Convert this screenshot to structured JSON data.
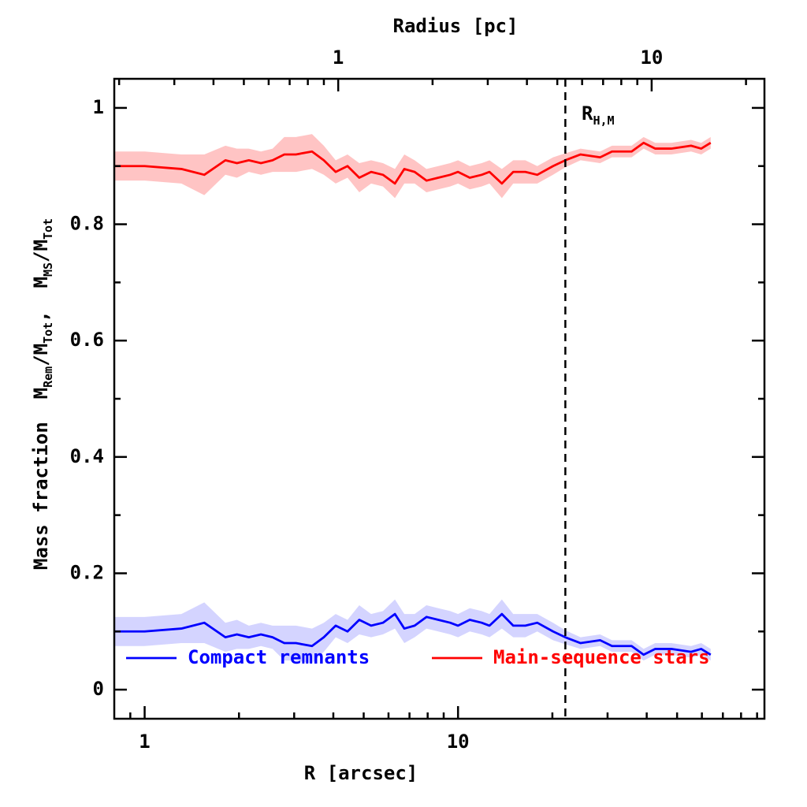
{
  "chart_data": {
    "type": "line",
    "xlabel": "R [arcsec]",
    "x2label": "Radius [pc]",
    "ylabel_parts": [
      {
        "text": "Mass fraction  M"
      },
      {
        "text": "Rem",
        "sub": true
      },
      {
        "text": "/M"
      },
      {
        "text": "Tot",
        "sub": true
      },
      {
        "text": ",  M"
      },
      {
        "text": "MS",
        "sub": true
      },
      {
        "text": "/M"
      },
      {
        "text": "Tot",
        "sub": true
      }
    ],
    "xscale": "log",
    "xlim": [
      0.8,
      95
    ],
    "xticks": [
      1,
      10
    ],
    "xminorticks": [
      0.9,
      2,
      3,
      4,
      5,
      6,
      7,
      8,
      9,
      20,
      30,
      40,
      50,
      60,
      70,
      80,
      90
    ],
    "x2lim": [
      0.193,
      22.9
    ],
    "x2ticks": [
      1,
      10
    ],
    "x2minorticks": [
      0.2,
      0.3,
      0.4,
      0.5,
      0.6,
      0.7,
      0.8,
      0.9,
      2,
      3,
      4,
      5,
      6,
      7,
      8,
      9,
      20
    ],
    "ylim": [
      -0.05,
      1.05
    ],
    "yticks": [
      0,
      0.2,
      0.4,
      0.6,
      0.8,
      1
    ],
    "yminorticks": [
      0.1,
      0.3,
      0.5,
      0.7,
      0.9
    ],
    "vline": 22.0,
    "annotation_parts": [
      {
        "text": "R"
      },
      {
        "text": "H,M",
        "sub": true
      }
    ],
    "legend": "lower",
    "x": [
      0.8,
      1.0,
      1.31,
      1.55,
      1.81,
      1.97,
      2.15,
      2.35,
      2.56,
      2.79,
      3.04,
      3.42,
      3.73,
      4.07,
      4.44,
      4.84,
      5.28,
      5.76,
      6.29,
      6.74,
      7.27,
      7.93,
      8.65,
      9.44,
      10.0,
      10.9,
      11.9,
      12.6,
      13.8,
      15.0,
      16.4,
      17.9,
      20.1,
      22.0,
      24.6,
      28.4,
      31.0,
      35.8,
      39.1,
      42.6,
      47.9,
      55.4,
      59.7,
      64.0
    ],
    "series": [
      {
        "name": "Compact remnants",
        "color": "#0000ff",
        "band_color": "#d4d4ff",
        "values": [
          0.1,
          0.1,
          0.105,
          0.115,
          0.09,
          0.095,
          0.09,
          0.095,
          0.09,
          0.08,
          0.08,
          0.075,
          0.09,
          0.11,
          0.1,
          0.12,
          0.11,
          0.115,
          0.13,
          0.105,
          0.11,
          0.125,
          0.12,
          0.115,
          0.11,
          0.12,
          0.115,
          0.11,
          0.13,
          0.11,
          0.11,
          0.115,
          0.1,
          0.09,
          0.08,
          0.085,
          0.075,
          0.075,
          0.06,
          0.07,
          0.07,
          0.065,
          0.07,
          0.06
        ],
        "errors": [
          0.025,
          0.025,
          0.025,
          0.035,
          0.025,
          0.025,
          0.02,
          0.02,
          0.02,
          0.03,
          0.03,
          0.03,
          0.025,
          0.02,
          0.02,
          0.025,
          0.02,
          0.02,
          0.025,
          0.025,
          0.02,
          0.02,
          0.02,
          0.02,
          0.02,
          0.02,
          0.02,
          0.02,
          0.025,
          0.02,
          0.02,
          0.015,
          0.015,
          0.012,
          0.01,
          0.01,
          0.01,
          0.01,
          0.01,
          0.01,
          0.01,
          0.01,
          0.01,
          0.01
        ]
      },
      {
        "name": "Main-sequence stars",
        "color": "#ff0000",
        "band_color": "#ffc4c4",
        "values": [
          0.9,
          0.9,
          0.895,
          0.885,
          0.91,
          0.905,
          0.91,
          0.905,
          0.91,
          0.92,
          0.92,
          0.925,
          0.91,
          0.89,
          0.9,
          0.88,
          0.89,
          0.885,
          0.87,
          0.895,
          0.89,
          0.875,
          0.88,
          0.885,
          0.89,
          0.88,
          0.885,
          0.89,
          0.87,
          0.89,
          0.89,
          0.885,
          0.9,
          0.91,
          0.92,
          0.915,
          0.925,
          0.925,
          0.94,
          0.93,
          0.93,
          0.935,
          0.93,
          0.94
        ],
        "errors": [
          0.025,
          0.025,
          0.025,
          0.035,
          0.025,
          0.025,
          0.02,
          0.02,
          0.02,
          0.03,
          0.03,
          0.03,
          0.025,
          0.02,
          0.02,
          0.025,
          0.02,
          0.02,
          0.025,
          0.025,
          0.02,
          0.02,
          0.02,
          0.02,
          0.02,
          0.02,
          0.02,
          0.02,
          0.025,
          0.02,
          0.02,
          0.015,
          0.015,
          0.012,
          0.01,
          0.01,
          0.01,
          0.01,
          0.01,
          0.01,
          0.01,
          0.01,
          0.01,
          0.01
        ]
      }
    ]
  }
}
